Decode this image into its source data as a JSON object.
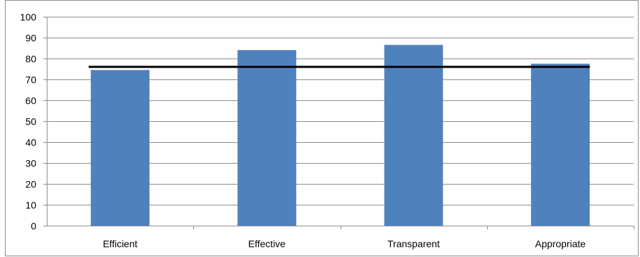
{
  "chart_data": {
    "type": "bar",
    "title": "",
    "xlabel": "",
    "ylabel": "",
    "categories": [
      "Efficient",
      "Effective",
      "Transparent",
      "Appropriate"
    ],
    "values": [
      74.5,
      84,
      86.5,
      77.5
    ],
    "reference_line": 76,
    "ylim": [
      0,
      100
    ],
    "yticks": [
      0,
      10,
      20,
      30,
      40,
      50,
      60,
      70,
      80,
      90,
      100
    ],
    "grid": true,
    "legend": "none",
    "colors": {
      "bar": "#4f81bd",
      "bar_edge": "#3a6aa8",
      "reference_line": "#000000",
      "gridline": "#8c8c8c",
      "axis": "#8c8c8c"
    }
  }
}
